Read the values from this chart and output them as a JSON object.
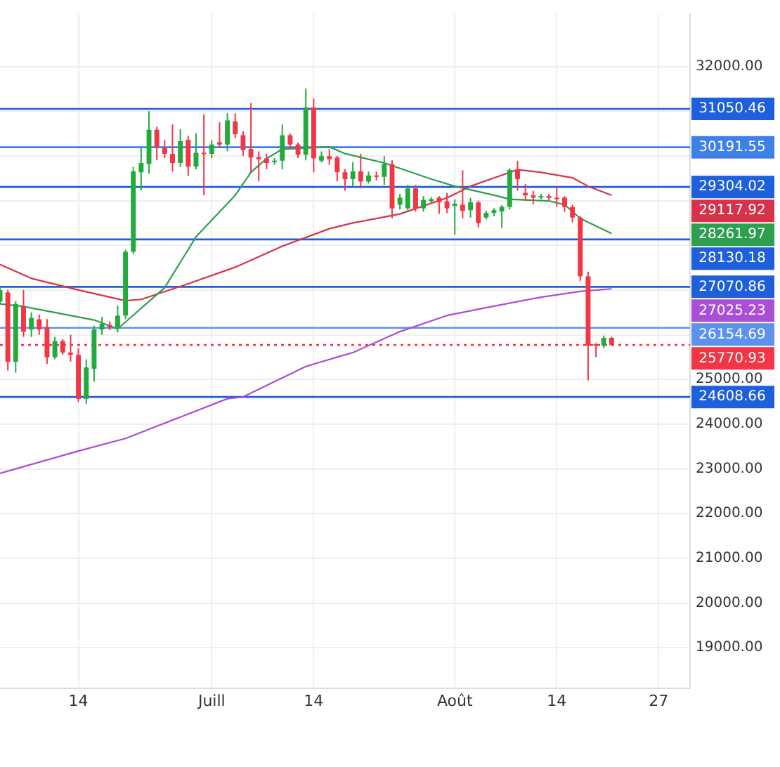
{
  "chart_data": {
    "type": "candlestick",
    "x": [
      "--06-04",
      "--06-05",
      "--06-06",
      "--06-07",
      "--06-08",
      "--06-09",
      "--06-10",
      "--06-11",
      "--06-12",
      "--06-13",
      "--06-14",
      "--06-15",
      "--06-16",
      "--06-17",
      "--06-18",
      "--06-19",
      "--06-20",
      "--06-21",
      "--06-22",
      "--06-23",
      "--06-24",
      "--06-25",
      "--06-26",
      "--06-27",
      "--06-28",
      "--06-29",
      "--06-30",
      "--07-01",
      "--07-02",
      "--07-03",
      "--07-04",
      "--07-05",
      "--07-06",
      "--07-07",
      "--07-08",
      "--07-09",
      "--07-10",
      "--07-11",
      "--07-12",
      "--07-13",
      "--07-14",
      "--07-15",
      "--07-16",
      "--07-17",
      "--07-18",
      "--07-19",
      "--07-20",
      "--07-21",
      "--07-22",
      "--07-23",
      "--07-24",
      "--07-25",
      "--07-26",
      "--07-27",
      "--07-28",
      "--07-29",
      "--07-30",
      "--07-31",
      "--08-01",
      "--08-02",
      "--08-03",
      "--08-04",
      "--08-05",
      "--08-06",
      "--08-07",
      "--08-08",
      "--08-09",
      "--08-10",
      "--08-11",
      "--08-12",
      "--08-13",
      "--08-14",
      "--08-15",
      "--08-16",
      "--08-17",
      "--08-18",
      "--08-19",
      "--08-20",
      "--08-21"
    ],
    "ohlc": [
      [
        26738,
        27050,
        26700,
        26996
      ],
      [
        26945,
        27000,
        25200,
        25394
      ],
      [
        25394,
        26750,
        25150,
        26686
      ],
      [
        26635,
        27000,
        25950,
        26066
      ],
      [
        26117,
        26500,
        25950,
        26376
      ],
      [
        26345,
        26450,
        26000,
        26117
      ],
      [
        26169,
        26350,
        25350,
        25497
      ],
      [
        25497,
        25950,
        25450,
        25859
      ],
      [
        25859,
        25900,
        25550,
        25601
      ],
      [
        25601,
        26000,
        25400,
        25549
      ],
      [
        25549,
        25700,
        24500,
        24566
      ],
      [
        24566,
        25450,
        24450,
        25269
      ],
      [
        25239,
        26200,
        24950,
        26117
      ],
      [
        26117,
        26400,
        26000,
        26242
      ],
      [
        26221,
        26300,
        26100,
        26169
      ],
      [
        26169,
        26650,
        26050,
        26428
      ],
      [
        26428,
        27900,
        26350,
        27854
      ],
      [
        27854,
        29750,
        27800,
        29654
      ],
      [
        29633,
        30202,
        29230,
        29840
      ],
      [
        29819,
        31000,
        29600,
        30584
      ],
      [
        30584,
        30650,
        29900,
        30202
      ],
      [
        30171,
        30350,
        29950,
        30046
      ],
      [
        30046,
        30700,
        29650,
        29840
      ],
      [
        29840,
        30600,
        29750,
        30326
      ],
      [
        30357,
        30450,
        29550,
        29757
      ],
      [
        29757,
        30500,
        29700,
        30067
      ],
      [
        30067,
        30925,
        29116,
        30046
      ],
      [
        30046,
        30350,
        29950,
        30253
      ],
      [
        30305,
        30750,
        30200,
        30253
      ],
      [
        30253,
        30950,
        30100,
        30791
      ],
      [
        30770,
        30950,
        30400,
        30481
      ],
      [
        30460,
        30550,
        30000,
        30129
      ],
      [
        30150,
        31180,
        29633,
        29964
      ],
      [
        29974,
        30100,
        29430,
        29923
      ],
      [
        29943,
        30050,
        29700,
        29840
      ],
      [
        29860,
        29950,
        29800,
        29891
      ],
      [
        29891,
        30700,
        29700,
        30460
      ],
      [
        30460,
        30500,
        30150,
        30253
      ],
      [
        30253,
        30300,
        29950,
        30026
      ],
      [
        30026,
        31500,
        29900,
        31081
      ],
      [
        31081,
        31280,
        29633,
        29943
      ],
      [
        29891,
        30100,
        29850,
        29995
      ],
      [
        29995,
        30150,
        29800,
        29923
      ],
      [
        29964,
        30000,
        29430,
        29633
      ],
      [
        29633,
        29700,
        29220,
        29478
      ],
      [
        29478,
        29860,
        29320,
        29654
      ],
      [
        29654,
        30050,
        29270,
        29426
      ],
      [
        29426,
        29650,
        29380,
        29560
      ],
      [
        29560,
        29650,
        29450,
        29530
      ],
      [
        29530,
        29995,
        29350,
        29819
      ],
      [
        29819,
        29900,
        28600,
        28826
      ],
      [
        28909,
        29150,
        28800,
        29064
      ],
      [
        28826,
        29350,
        28750,
        29271
      ],
      [
        29271,
        29350,
        28750,
        28826
      ],
      [
        28826,
        29100,
        28750,
        29013
      ],
      [
        28985,
        29080,
        28950,
        29033
      ],
      [
        29064,
        29100,
        28700,
        28960
      ],
      [
        28980,
        29170,
        28720,
        28826
      ],
      [
        28880,
        29030,
        28240,
        28930
      ],
      [
        28910,
        29680,
        28600,
        28770
      ],
      [
        28785,
        29060,
        28620,
        28960
      ],
      [
        28960,
        29000,
        28400,
        28495
      ],
      [
        28620,
        28770,
        28580,
        28723
      ],
      [
        28723,
        28830,
        28650,
        28785
      ],
      [
        28754,
        28900,
        28390,
        28857
      ],
      [
        28857,
        29720,
        28800,
        29685
      ],
      [
        29685,
        29890,
        29220,
        29478
      ],
      [
        29170,
        29370,
        28990,
        29116
      ],
      [
        29116,
        29220,
        28910,
        29064
      ],
      [
        29080,
        29150,
        29030,
        29100
      ],
      [
        29100,
        29150,
        29000,
        29060
      ],
      [
        29064,
        29320,
        28860,
        29030
      ],
      [
        29064,
        29100,
        28750,
        28857
      ],
      [
        28857,
        28900,
        28510,
        28620
      ],
      [
        28620,
        28650,
        27200,
        27306
      ],
      [
        27306,
        27410,
        24980,
        25755
      ],
      [
        25790,
        25810,
        25500,
        25760
      ],
      [
        25755,
        25980,
        25700,
        25930
      ],
      [
        25930,
        25960,
        25750,
        25771
      ]
    ],
    "colors": [
      "#22ab3c",
      "#f23645",
      "#22ab3c",
      "#f23645",
      "#22ab3c",
      "#f23645",
      "#f23645",
      "#22ab3c",
      "#f23645",
      "#f23645",
      "#f23645",
      "#22ab3c",
      "#22ab3c",
      "#22ab3c",
      "#f23645",
      "#22ab3c",
      "#22ab3c",
      "#22ab3c",
      "#22ab3c",
      "#22ab3c",
      "#f23645",
      "#f23645",
      "#f23645",
      "#22ab3c",
      "#f23645",
      "#22ab3c",
      "#f23645",
      "#22ab3c",
      "#f23645",
      "#22ab3c",
      "#f23645",
      "#f23645",
      "#f23645",
      "#f23645",
      "#f23645",
      "#22ab3c",
      "#22ab3c",
      "#f23645",
      "#f23645",
      "#22ab3c",
      "#f23645",
      "#22ab3c",
      "#f23645",
      "#f23645",
      "#f23645",
      "#22ab3c",
      "#f23645",
      "#22ab3c",
      "#f23645",
      "#22ab3c",
      "#f23645",
      "#22ab3c",
      "#22ab3c",
      "#f23645",
      "#22ab3c",
      "#22ab3c",
      "#f23645",
      "#f23645",
      "#22ab3c",
      "#f23645",
      "#22ab3c",
      "#f23645",
      "#22ab3c",
      "#22ab3c",
      "#22ab3c",
      "#22ab3c",
      "#f23645",
      "#f23645",
      "#f23645",
      "#22ab3c",
      "#f23645",
      "#f23645",
      "#f23645",
      "#f23645",
      "#f23645",
      "#f23645",
      "#f23645",
      "#22ab3c",
      "#f23645"
    ],
    "series": [
      {
        "type": "line",
        "color": "#2e9e4f",
        "x": [
          "--06-04",
          "--06-07",
          "--06-16",
          "--06-19",
          "--06-25",
          "--06-29",
          "--07-04",
          "--07-06",
          "--07-08",
          "--07-10",
          "--07-16",
          "--07-18",
          "--07-23",
          "--07-29",
          "--08-01",
          "--08-06",
          "--08-08",
          "--08-13",
          "--08-15",
          "--08-17",
          "--08-21"
        ],
        "values": [
          26690,
          26630,
          26330,
          26130,
          27050,
          28190,
          29120,
          29630,
          29940,
          30150,
          30200,
          30050,
          29840,
          29480,
          29320,
          29120,
          29030,
          28990,
          28910,
          28600,
          28261.97
        ]
      },
      {
        "type": "line",
        "color": "#d6334b",
        "x": [
          "--06-04",
          "--06-08",
          "--06-14",
          "--06-20",
          "--06-22",
          "--06-28",
          "--07-04",
          "--07-10",
          "--07-16",
          "--07-19",
          "--07-25",
          "--07-31",
          "--08-03",
          "--08-08",
          "--08-09",
          "--08-12",
          "--08-16",
          "--08-18",
          "--08-21"
        ],
        "values": [
          27570,
          27260,
          27000,
          26760,
          26790,
          27140,
          27510,
          27980,
          28370,
          28500,
          28700,
          29060,
          29320,
          29630,
          29690,
          29630,
          29510,
          29320,
          29117.92
        ]
      },
      {
        "type": "line",
        "color": "#a94ed6",
        "x": [
          "--06-04",
          "--06-14",
          "--06-20",
          "--07-03",
          "--07-05",
          "--07-13",
          "--07-17",
          "--07-19",
          "--07-25",
          "--07-31",
          "--08-06",
          "--08-12",
          "--08-17",
          "--08-21"
        ],
        "values": [
          22900,
          23400,
          23680,
          24570,
          24610,
          25290,
          25500,
          25600,
          26070,
          26430,
          26640,
          26840,
          26970,
          27025.23
        ]
      }
    ],
    "ref_lines": [
      {
        "axis": "y",
        "value": 31050.46,
        "label": "31050.46",
        "color": "#1e5fdc"
      },
      {
        "axis": "y",
        "value": 30191.55,
        "label": "30191.55",
        "color": "#3f7fe8"
      },
      {
        "axis": "y",
        "value": 29304.02,
        "label": "29304.02",
        "color": "#1e5fdc"
      },
      {
        "axis": "y",
        "value": 28130.18,
        "label": "28130.18",
        "color": "#1e5fdc"
      },
      {
        "axis": "y",
        "value": 27070.86,
        "label": "27070.86",
        "color": "#1e5fdc"
      },
      {
        "axis": "y",
        "value": 26154.69,
        "label": "26154.69",
        "color": "#5a92ee"
      },
      {
        "axis": "y",
        "value": 25770.93,
        "label": "25770.93",
        "color": "#f23645",
        "line_style": "dotted"
      },
      {
        "axis": "y",
        "value": 24608.66,
        "label": "24608.66",
        "color": "#1e5fdc"
      }
    ],
    "annotations": [
      "28261.97",
      "29117.92",
      "27025.23"
    ],
    "xlim": [
      "--06-04",
      "--08-31"
    ],
    "xticks": [
      {
        "value": "--06-14",
        "label": "14"
      },
      {
        "value": "--07-01",
        "label": "Juill"
      },
      {
        "value": "--07-14",
        "label": "14"
      },
      {
        "value": "--08-01",
        "label": "Août"
      },
      {
        "value": "--08-14",
        "label": "14"
      },
      {
        "value": "--08-27",
        "label": "27"
      }
    ],
    "ylim": [
      18100,
      33170
    ],
    "yticks": [
      {
        "value": 19000,
        "label": "19000.00"
      },
      {
        "value": 20000,
        "label": "20000.00"
      },
      {
        "value": 21000,
        "label": "21000.00"
      },
      {
        "value": 22000,
        "label": "22000.00"
      },
      {
        "value": 23000,
        "label": "23000.00"
      },
      {
        "value": 24000,
        "label": "24000.00"
      },
      {
        "value": 25000,
        "label": "25000.00"
      },
      {
        "value": 26000,
        "label": null
      },
      {
        "value": 27000,
        "label": null
      },
      {
        "value": 28000,
        "label": null
      },
      {
        "value": 29000,
        "label": null
      },
      {
        "value": 30000,
        "label": null
      },
      {
        "value": 31000,
        "label": null
      },
      {
        "value": 32000,
        "label": "32000.00"
      }
    ],
    "grid": true,
    "marker": "none",
    "line_style": "solid",
    "legend": false
  }
}
